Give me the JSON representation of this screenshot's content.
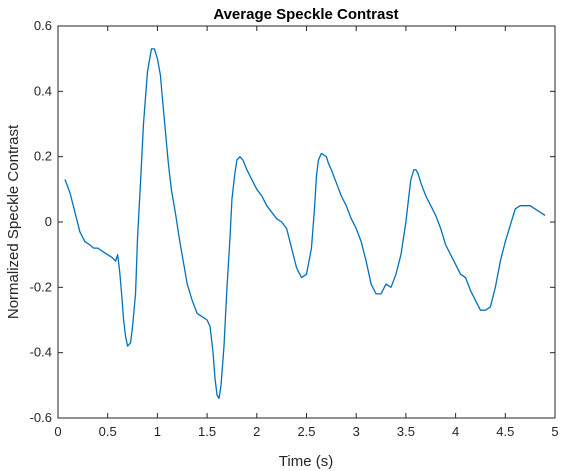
{
  "chart_data": {
    "type": "line",
    "title": "Average Speckle Contrast",
    "xlabel": "Time (s)",
    "ylabel": "Normalized Speckle Contrast",
    "xlim": [
      0,
      5
    ],
    "ylim": [
      -0.6,
      0.6
    ],
    "xticks": [
      "0",
      "0.5",
      "1",
      "1.5",
      "2",
      "2.5",
      "3",
      "3.5",
      "4",
      "4.5",
      "5"
    ],
    "yticks": [
      "-0.6",
      "-0.4",
      "-0.2",
      "0",
      "0.2",
      "0.4",
      "0.6"
    ],
    "grid": false,
    "line_color": "#0072BD",
    "series": [
      {
        "x": [
          0.07,
          0.12,
          0.17,
          0.22,
          0.27,
          0.32,
          0.36,
          0.4,
          0.45,
          0.5,
          0.55,
          0.58,
          0.6,
          0.62,
          0.64,
          0.66,
          0.68,
          0.7,
          0.73,
          0.75,
          0.78,
          0.8,
          0.83,
          0.86,
          0.9,
          0.94,
          0.97,
          1.0,
          1.03,
          1.05,
          1.08,
          1.11,
          1.14,
          1.18,
          1.22,
          1.26,
          1.3,
          1.35,
          1.4,
          1.45,
          1.5,
          1.53,
          1.56,
          1.58,
          1.6,
          1.62,
          1.64,
          1.67,
          1.7,
          1.73,
          1.75,
          1.78,
          1.8,
          1.83,
          1.86,
          1.9,
          1.95,
          2.0,
          2.05,
          2.1,
          2.15,
          2.2,
          2.25,
          2.3,
          2.35,
          2.4,
          2.45,
          2.5,
          2.55,
          2.58,
          2.6,
          2.62,
          2.65,
          2.7,
          2.72,
          2.75,
          2.8,
          2.85,
          2.9,
          2.95,
          3.0,
          3.05,
          3.1,
          3.15,
          3.2,
          3.25,
          3.3,
          3.35,
          3.4,
          3.45,
          3.5,
          3.53,
          3.55,
          3.58,
          3.6,
          3.62,
          3.65,
          3.7,
          3.75,
          3.8,
          3.85,
          3.9,
          3.95,
          4.0,
          4.05,
          4.1,
          4.15,
          4.2,
          4.25,
          4.3,
          4.35,
          4.4,
          4.45,
          4.5,
          4.55,
          4.58,
          4.6,
          4.65,
          4.7,
          4.75,
          4.8,
          4.85,
          4.9
        ],
        "y": [
          0.13,
          0.09,
          0.03,
          -0.03,
          -0.06,
          -0.07,
          -0.08,
          -0.08,
          -0.09,
          -0.1,
          -0.11,
          -0.12,
          -0.1,
          -0.15,
          -0.22,
          -0.3,
          -0.35,
          -0.38,
          -0.37,
          -0.32,
          -0.22,
          -0.05,
          0.12,
          0.3,
          0.46,
          0.53,
          0.53,
          0.5,
          0.45,
          0.38,
          0.28,
          0.18,
          0.1,
          0.03,
          -0.05,
          -0.12,
          -0.19,
          -0.24,
          -0.28,
          -0.29,
          -0.3,
          -0.32,
          -0.4,
          -0.48,
          -0.53,
          -0.54,
          -0.5,
          -0.38,
          -0.2,
          -0.05,
          0.07,
          0.15,
          0.19,
          0.2,
          0.19,
          0.16,
          0.13,
          0.1,
          0.08,
          0.05,
          0.03,
          0.01,
          0.0,
          -0.02,
          -0.08,
          -0.14,
          -0.17,
          -0.16,
          -0.08,
          0.04,
          0.14,
          0.19,
          0.21,
          0.2,
          0.18,
          0.16,
          0.12,
          0.08,
          0.05,
          0.01,
          -0.02,
          -0.06,
          -0.12,
          -0.19,
          -0.22,
          -0.22,
          -0.19,
          -0.2,
          -0.16,
          -0.1,
          0.0,
          0.08,
          0.13,
          0.16,
          0.16,
          0.15,
          0.12,
          0.08,
          0.05,
          0.02,
          -0.02,
          -0.07,
          -0.1,
          -0.13,
          -0.16,
          -0.17,
          -0.21,
          -0.24,
          -0.27,
          -0.27,
          -0.26,
          -0.2,
          -0.12,
          -0.06,
          -0.01,
          0.02,
          0.04,
          0.05,
          0.05,
          0.05,
          0.04,
          0.03,
          0.02
        ]
      }
    ]
  }
}
